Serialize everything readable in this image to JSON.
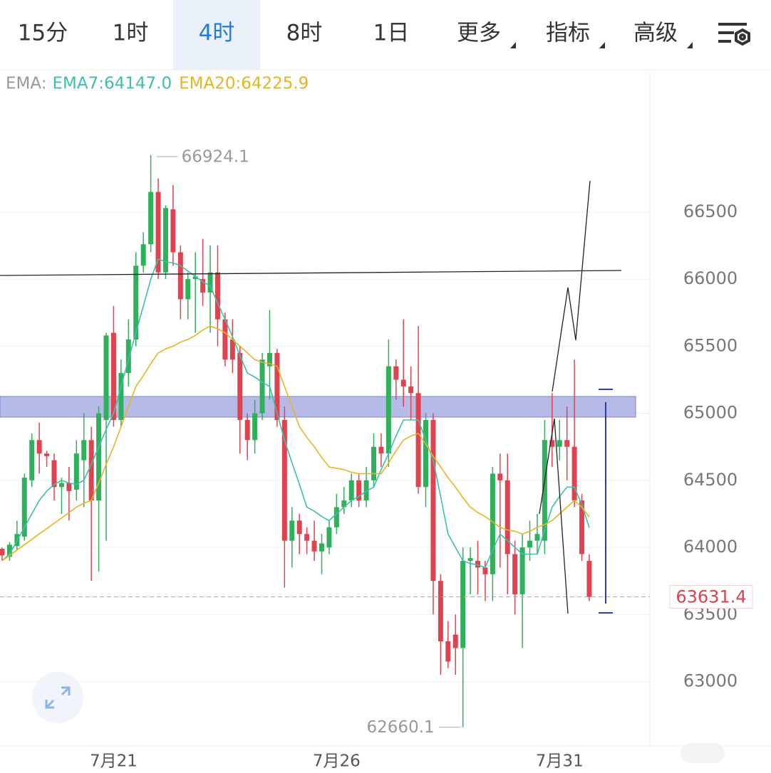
{
  "tabs": [
    "15分",
    "1时",
    "4时",
    "8时",
    "1日",
    "更多",
    "指标",
    "高级"
  ],
  "active_tab": 2,
  "chart_data": {
    "type": "candlestick",
    "legend_title": "EMA:",
    "categories": [
      null,
      null,
      null,
      null,
      null,
      null,
      null,
      null,
      null,
      null,
      null,
      null,
      null,
      null,
      null,
      "7月21",
      null,
      null,
      null,
      null,
      null,
      null,
      null,
      null,
      null,
      null,
      null,
      null,
      null,
      null,
      null,
      null,
      null,
      null,
      null,
      null,
      null,
      null,
      null,
      null,
      null,
      null,
      null,
      null,
      null,
      "7月26",
      null,
      null,
      null,
      null,
      null,
      null,
      null,
      null,
      null,
      null,
      null,
      null,
      null,
      null,
      null,
      null,
      null,
      null,
      null,
      null,
      null,
      null,
      null,
      null,
      null,
      null,
      null,
      null,
      null,
      "7月31",
      null,
      null,
      null,
      null
    ],
    "open": [
      63990,
      63930,
      64010,
      64080,
      64500,
      64800,
      64700,
      64650,
      64450,
      64480,
      64430,
      64650,
      64800,
      64350,
      64950,
      65600,
      64950,
      65300,
      65550,
      66100,
      66260,
      66650,
      66050,
      66520,
      66200,
      65850,
      66000,
      66000,
      65900,
      66050,
      65700,
      65550,
      65450,
      64950,
      64800,
      65000,
      65350,
      65450,
      64950,
      64050,
      64200,
      64100,
      64050,
      63970,
      64000,
      64150,
      64300,
      64350,
      64500,
      64350,
      64500,
      64750,
      64700,
      65350,
      65250,
      65200,
      65150,
      64450,
      64950,
      63750,
      63300,
      63350,
      63250,
      63900,
      63900,
      63850,
      63800,
      64550,
      64500,
      63950,
      63650,
      64000,
      64050,
      64050,
      64800,
      64750,
      64800,
      64750,
      64350,
      63900
    ],
    "high": [
      64000,
      64040,
      64200,
      64550,
      64850,
      64930,
      64720,
      64700,
      64520,
      64600,
      64800,
      65000,
      64900,
      65050,
      65600,
      65800,
      65400,
      65700,
      66200,
      66350,
      66924.1,
      66750,
      66550,
      66700,
      66250,
      66050,
      66200,
      66300,
      66250,
      66250,
      65750,
      65700,
      65500,
      65000,
      65100,
      65450,
      65770,
      65480,
      65050,
      64300,
      64250,
      64150,
      64200,
      64100,
      64200,
      64400,
      64450,
      64550,
      64550,
      64600,
      64850,
      64850,
      65550,
      65400,
      65700,
      65350,
      65650,
      65000,
      65000,
      63800,
      63450,
      63500,
      64000,
      64000,
      64050,
      63900,
      64600,
      64700,
      64700,
      64050,
      64100,
      64200,
      64250,
      64950,
      65150,
      64950,
      65050,
      65400,
      64400,
      63950
    ],
    "low": [
      63900,
      63900,
      63980,
      64050,
      64450,
      64550,
      64600,
      64350,
      64250,
      64200,
      64350,
      64300,
      63750,
      63820,
      64050,
      64900,
      64900,
      65200,
      65500,
      66050,
      66200,
      66000,
      66000,
      66100,
      65700,
      65700,
      65600,
      65800,
      65600,
      65500,
      65350,
      65300,
      64700,
      64650,
      64700,
      64950,
      65100,
      64900,
      63700,
      63850,
      63950,
      63950,
      63900,
      63800,
      63950,
      64100,
      64250,
      64300,
      64300,
      64300,
      64450,
      64600,
      64600,
      65100,
      65050,
      64950,
      64400,
      64300,
      63500,
      63050,
      63100,
      63050,
      62660.1,
      63650,
      63650,
      63600,
      63600,
      63850,
      63650,
      63500,
      63250,
      63900,
      63950,
      63950,
      64600,
      64650,
      64500,
      64300,
      63900,
      63600
    ],
    "close": [
      63940,
      64020,
      64100,
      64520,
      64800,
      64700,
      64680,
      64450,
      64480,
      64420,
      64700,
      64800,
      64350,
      65000,
      65580,
      64950,
      65300,
      65550,
      66100,
      66260,
      66650,
      66050,
      66530,
      66200,
      65850,
      66000,
      66020,
      65900,
      66050,
      65700,
      65400,
      65400,
      64950,
      64800,
      65000,
      65400,
      65450,
      64950,
      64050,
      64200,
      64100,
      64050,
      63970,
      64030,
      64150,
      64300,
      64350,
      64500,
      64350,
      64500,
      64750,
      64700,
      65350,
      65250,
      65200,
      65150,
      64450,
      64950,
      63750,
      63300,
      63150,
      63250,
      63900,
      63920,
      63850,
      63800,
      64550,
      64500,
      63950,
      63650,
      64000,
      64050,
      64100,
      64800,
      64750,
      64800,
      64750,
      64350,
      63950,
      63631.4
    ],
    "up_color": "#2fb05a",
    "down_color": "#e0434f",
    "series": [
      {
        "name": "EMA7:64147.0",
        "color": "#3cbfae",
        "values": [
          63900,
          63950,
          64050,
          64150,
          64250,
          64350,
          64420,
          64470,
          64500,
          64480,
          64470,
          64500,
          64620,
          64750,
          64880,
          65000,
          65200,
          65400,
          65600,
          65800,
          66000,
          66150,
          66130,
          66120,
          66100,
          66060,
          66020,
          65980,
          65950,
          65820,
          65700,
          65570,
          65430,
          65300,
          65270,
          65230,
          65200,
          65000,
          64800,
          64630,
          64470,
          64300,
          64270,
          64230,
          64200,
          64250,
          64300,
          64350,
          64380,
          64420,
          64450,
          64580,
          64700,
          64830,
          64950,
          64950,
          64950,
          64800,
          64650,
          64380,
          64100,
          64000,
          63900,
          63880,
          63870,
          63850,
          63980,
          64100,
          64050,
          64000,
          63950,
          63950,
          63950,
          64130,
          64300,
          64380,
          64450,
          64450,
          64320,
          64147
        ]
      },
      {
        "name": "EMA20:64225.9",
        "color": "#e6b422",
        "values": [
          63900,
          63940,
          63980,
          64020,
          64060,
          64100,
          64140,
          64180,
          64220,
          64260,
          64300,
          64330,
          64350,
          64480,
          64620,
          64750,
          64900,
          65050,
          65200,
          65280,
          65370,
          65450,
          65480,
          65500,
          65530,
          65550,
          65580,
          65620,
          65650,
          65630,
          65600,
          65550,
          65500,
          65450,
          65400,
          65380,
          65370,
          65350,
          65200,
          65050,
          64900,
          64820,
          64750,
          64670,
          64600,
          64590,
          64580,
          64560,
          64550,
          64550,
          64550,
          64550,
          64630,
          64720,
          64800,
          64830,
          64850,
          64770,
          64680,
          64600,
          64520,
          64450,
          64370,
          64300,
          64260,
          64230,
          64190,
          64150,
          64130,
          64120,
          64100,
          64120,
          64150,
          64170,
          64200,
          64250,
          64300,
          64350,
          64300,
          64225.9
        ]
      }
    ],
    "ylim": [
      62520,
      67550
    ],
    "yticks": [
      63000,
      63500,
      64000,
      64500,
      65000,
      65500,
      66000,
      66500
    ],
    "grid": true
  }
}
